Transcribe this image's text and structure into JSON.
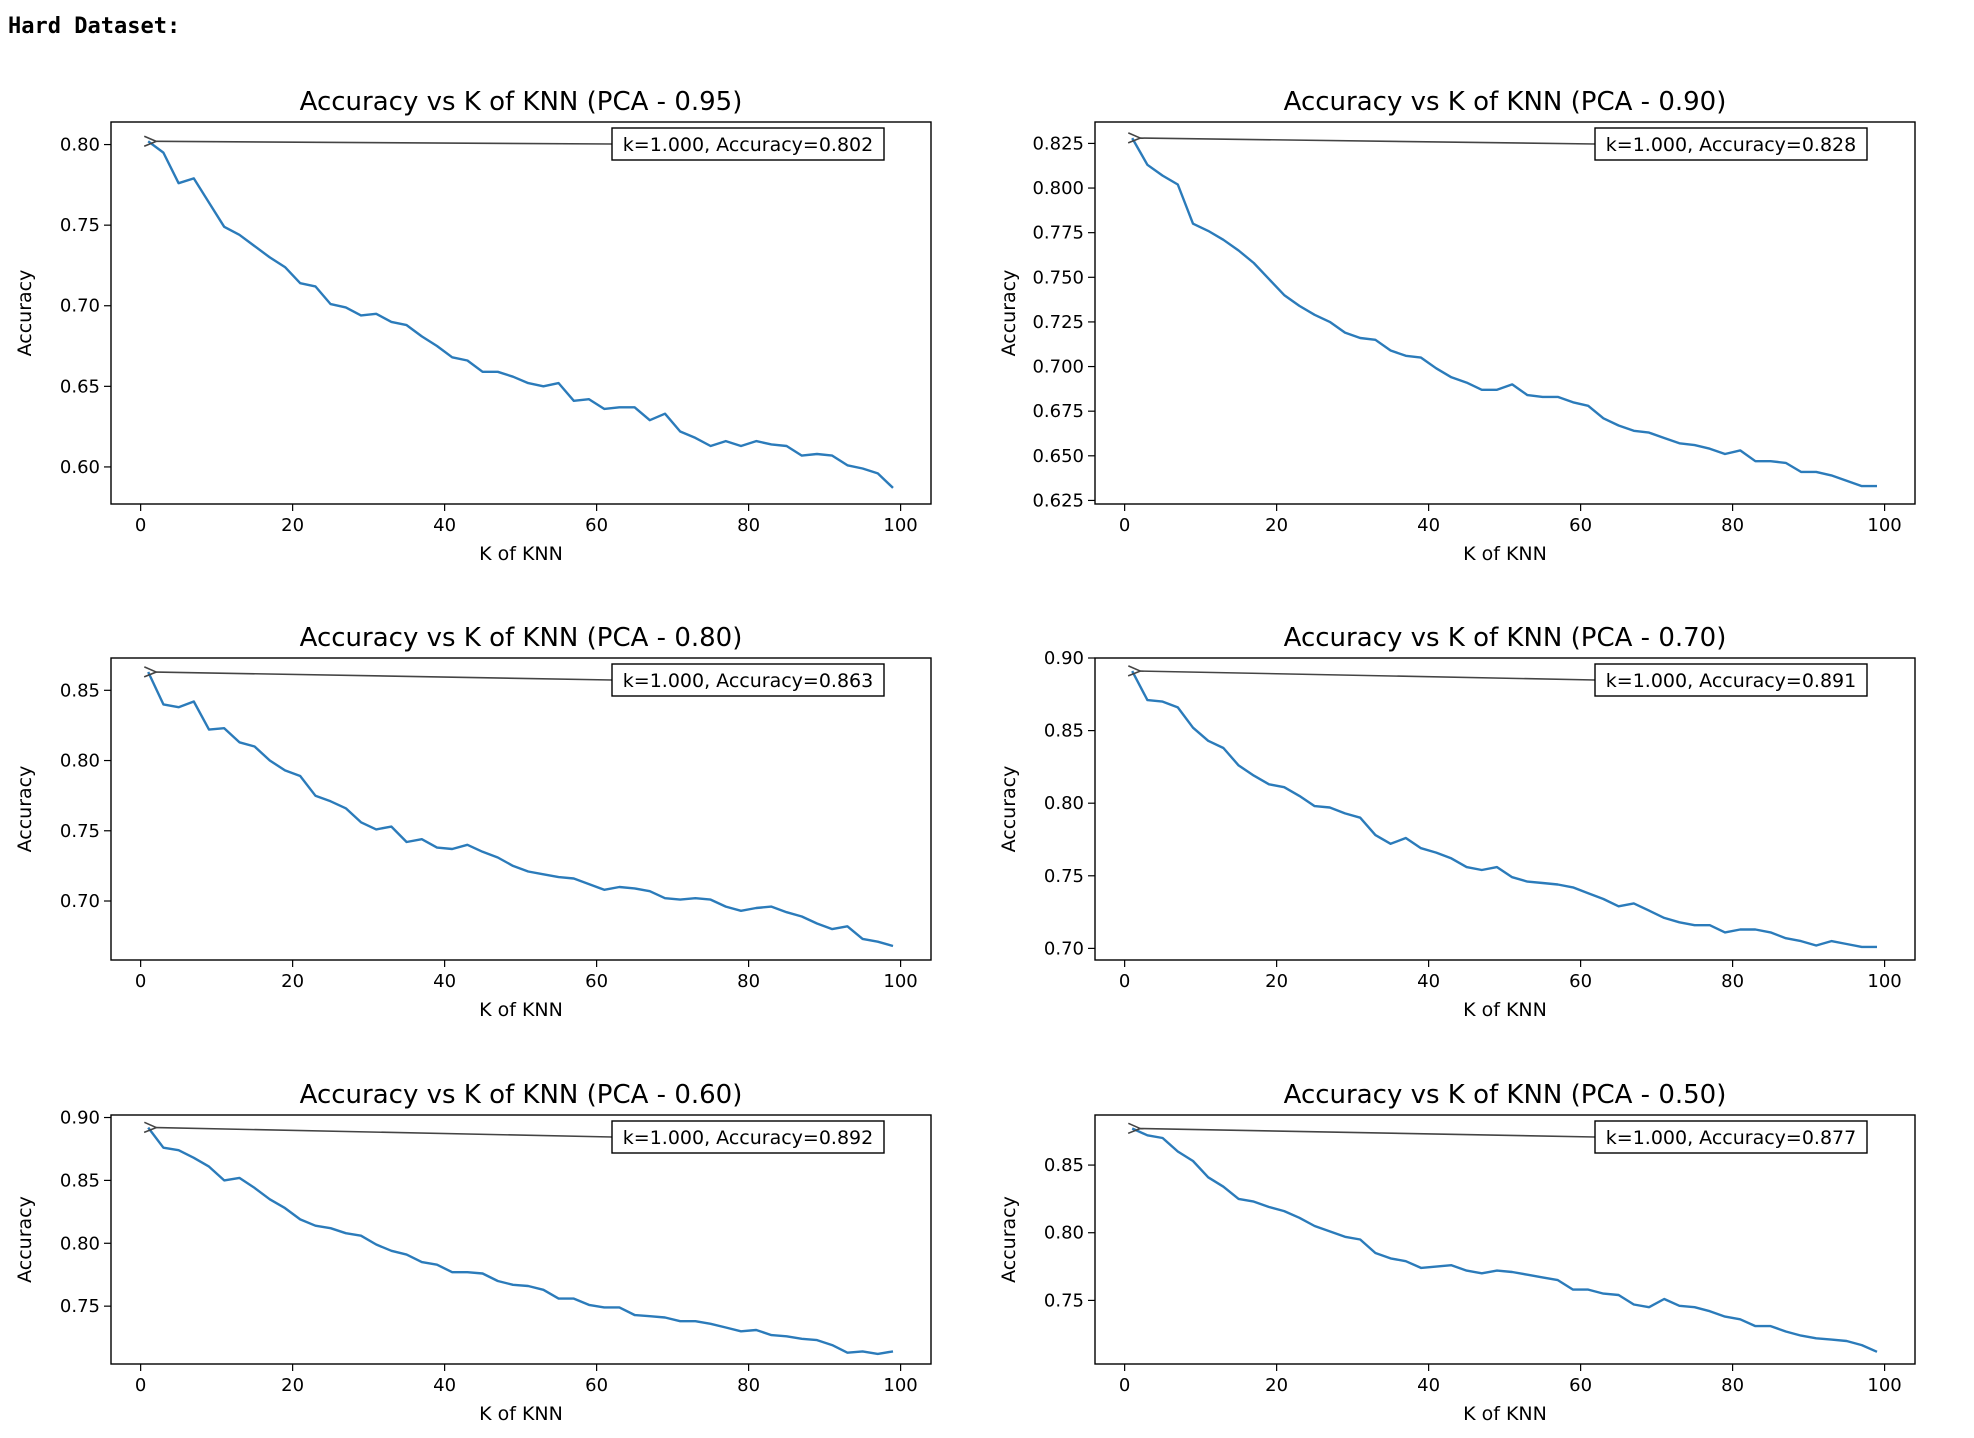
{
  "header": {
    "title": "Hard Dataset:"
  },
  "style": {
    "line_color": "#2b7bba",
    "axis_color": "#000000",
    "arrow_color": "#444444"
  },
  "chart_data": [
    {
      "type": "line",
      "title": "Accuracy vs K of KNN (PCA - 0.95)",
      "xlabel": "K of KNN",
      "ylabel": "Accuracy",
      "xlim": [
        -3.9,
        104
      ],
      "ylim": [
        0.577,
        0.814
      ],
      "xticks": [
        0,
        20,
        40,
        60,
        80,
        100
      ],
      "yticks": [
        0.6,
        0.65,
        0.7,
        0.75,
        0.8
      ],
      "ytick_labels": [
        "0.60",
        "0.65",
        "0.70",
        "0.75",
        "0.80"
      ],
      "annotation": {
        "text": "k=1.000, Accuracy=0.802",
        "x": 1,
        "y": 0.802
      },
      "series": [
        {
          "x": [
            1,
            3,
            5,
            7,
            9,
            11,
            13,
            15,
            17,
            19,
            21,
            23,
            25,
            27,
            29,
            31,
            33,
            35,
            37,
            39,
            41,
            43,
            45,
            47,
            49,
            51,
            53,
            55,
            57,
            59,
            61,
            63,
            65,
            67,
            69,
            71,
            73,
            75,
            77,
            79,
            81,
            83,
            85,
            87,
            89,
            91,
            93,
            95,
            97,
            99
          ],
          "values": [
            0.802,
            0.795,
            0.776,
            0.779,
            0.764,
            0.749,
            0.744,
            0.737,
            0.73,
            0.724,
            0.714,
            0.712,
            0.701,
            0.699,
            0.694,
            0.695,
            0.69,
            0.688,
            0.681,
            0.675,
            0.668,
            0.666,
            0.659,
            0.659,
            0.656,
            0.652,
            0.65,
            0.652,
            0.641,
            0.642,
            0.636,
            0.637,
            0.637,
            0.629,
            0.633,
            0.622,
            0.618,
            0.613,
            0.616,
            0.613,
            0.616,
            0.614,
            0.613,
            0.607,
            0.608,
            0.607,
            0.601,
            0.599,
            0.596,
            0.587
          ]
        }
      ]
    },
    {
      "type": "line",
      "title": "Accuracy vs K of KNN (PCA - 0.90)",
      "xlabel": "K of KNN",
      "ylabel": "Accuracy",
      "xlim": [
        -3.9,
        104
      ],
      "ylim": [
        0.623,
        0.837
      ],
      "xticks": [
        0,
        20,
        40,
        60,
        80,
        100
      ],
      "yticks": [
        0.625,
        0.65,
        0.675,
        0.7,
        0.725,
        0.75,
        0.775,
        0.8,
        0.825
      ],
      "ytick_labels": [
        "0.625",
        "0.650",
        "0.675",
        "0.700",
        "0.725",
        "0.750",
        "0.775",
        "0.800",
        "0.825"
      ],
      "annotation": {
        "text": "k=1.000, Accuracy=0.828",
        "x": 1,
        "y": 0.828
      },
      "series": [
        {
          "x": [
            1,
            3,
            5,
            7,
            9,
            11,
            13,
            15,
            17,
            19,
            21,
            23,
            25,
            27,
            29,
            31,
            33,
            35,
            37,
            39,
            41,
            43,
            45,
            47,
            49,
            51,
            53,
            55,
            57,
            59,
            61,
            63,
            65,
            67,
            69,
            71,
            73,
            75,
            77,
            79,
            81,
            83,
            85,
            87,
            89,
            91,
            93,
            95,
            97,
            99
          ],
          "values": [
            0.828,
            0.813,
            0.807,
            0.802,
            0.78,
            0.776,
            0.771,
            0.765,
            0.758,
            0.749,
            0.74,
            0.734,
            0.729,
            0.725,
            0.719,
            0.716,
            0.715,
            0.709,
            0.706,
            0.705,
            0.699,
            0.694,
            0.691,
            0.687,
            0.687,
            0.69,
            0.684,
            0.683,
            0.683,
            0.68,
            0.678,
            0.671,
            0.667,
            0.664,
            0.663,
            0.66,
            0.657,
            0.656,
            0.654,
            0.651,
            0.653,
            0.647,
            0.647,
            0.646,
            0.641,
            0.641,
            0.639,
            0.636,
            0.633,
            0.633
          ]
        }
      ]
    },
    {
      "type": "line",
      "title": "Accuracy vs K of KNN (PCA - 0.80)",
      "xlabel": "K of KNN",
      "ylabel": "Accuracy",
      "xlim": [
        -3.9,
        104
      ],
      "ylim": [
        0.658,
        0.873
      ],
      "xticks": [
        0,
        20,
        40,
        60,
        80,
        100
      ],
      "yticks": [
        0.7,
        0.75,
        0.8,
        0.85
      ],
      "ytick_labels": [
        "0.70",
        "0.75",
        "0.80",
        "0.85"
      ],
      "annotation": {
        "text": "k=1.000, Accuracy=0.863",
        "x": 1,
        "y": 0.863
      },
      "series": [
        {
          "x": [
            1,
            3,
            5,
            7,
            9,
            11,
            13,
            15,
            17,
            19,
            21,
            23,
            25,
            27,
            29,
            31,
            33,
            35,
            37,
            39,
            41,
            43,
            45,
            47,
            49,
            51,
            53,
            55,
            57,
            59,
            61,
            63,
            65,
            67,
            69,
            71,
            73,
            75,
            77,
            79,
            81,
            83,
            85,
            87,
            89,
            91,
            93,
            95,
            97,
            99
          ],
          "values": [
            0.863,
            0.84,
            0.838,
            0.842,
            0.822,
            0.823,
            0.813,
            0.81,
            0.8,
            0.793,
            0.789,
            0.775,
            0.771,
            0.766,
            0.756,
            0.751,
            0.753,
            0.742,
            0.744,
            0.738,
            0.737,
            0.74,
            0.735,
            0.731,
            0.725,
            0.721,
            0.719,
            0.717,
            0.716,
            0.712,
            0.708,
            0.71,
            0.709,
            0.707,
            0.702,
            0.701,
            0.702,
            0.701,
            0.696,
            0.693,
            0.695,
            0.696,
            0.692,
            0.689,
            0.684,
            0.68,
            0.682,
            0.673,
            0.671,
            0.668
          ]
        }
      ]
    },
    {
      "type": "line",
      "title": "Accuracy vs K of KNN (PCA - 0.70)",
      "xlabel": "K of KNN",
      "ylabel": "Accuracy",
      "xlim": [
        -3.9,
        104
      ],
      "ylim": [
        0.692,
        0.9
      ],
      "xticks": [
        0,
        20,
        40,
        60,
        80,
        100
      ],
      "yticks": [
        0.7,
        0.75,
        0.8,
        0.85,
        0.9
      ],
      "ytick_labels": [
        "0.70",
        "0.75",
        "0.80",
        "0.85",
        "0.90"
      ],
      "annotation": {
        "text": "k=1.000, Accuracy=0.891",
        "x": 1,
        "y": 0.891
      },
      "series": [
        {
          "x": [
            1,
            3,
            5,
            7,
            9,
            11,
            13,
            15,
            17,
            19,
            21,
            23,
            25,
            27,
            29,
            31,
            33,
            35,
            37,
            39,
            41,
            43,
            45,
            47,
            49,
            51,
            53,
            55,
            57,
            59,
            61,
            63,
            65,
            67,
            69,
            71,
            73,
            75,
            77,
            79,
            81,
            83,
            85,
            87,
            89,
            91,
            93,
            95,
            97,
            99
          ],
          "values": [
            0.891,
            0.871,
            0.87,
            0.866,
            0.852,
            0.843,
            0.838,
            0.826,
            0.819,
            0.813,
            0.811,
            0.805,
            0.798,
            0.797,
            0.793,
            0.79,
            0.778,
            0.772,
            0.776,
            0.769,
            0.766,
            0.762,
            0.756,
            0.754,
            0.756,
            0.749,
            0.746,
            0.745,
            0.744,
            0.742,
            0.738,
            0.734,
            0.729,
            0.731,
            0.726,
            0.721,
            0.718,
            0.716,
            0.716,
            0.711,
            0.713,
            0.713,
            0.711,
            0.707,
            0.705,
            0.702,
            0.705,
            0.703,
            0.701,
            0.701
          ]
        }
      ]
    },
    {
      "type": "line",
      "title": "Accuracy vs K of KNN (PCA - 0.60)",
      "xlabel": "K of KNN",
      "ylabel": "Accuracy",
      "xlim": [
        -3.9,
        104
      ],
      "ylim": [
        0.704,
        0.902
      ],
      "xticks": [
        0,
        20,
        40,
        60,
        80,
        100
      ],
      "yticks": [
        0.75,
        0.8,
        0.85,
        0.9
      ],
      "ytick_labels": [
        "0.75",
        "0.80",
        "0.85",
        "0.90"
      ],
      "annotation": {
        "text": "k=1.000, Accuracy=0.892",
        "x": 1,
        "y": 0.892
      },
      "series": [
        {
          "x": [
            1,
            3,
            5,
            7,
            9,
            11,
            13,
            15,
            17,
            19,
            21,
            23,
            25,
            27,
            29,
            31,
            33,
            35,
            37,
            39,
            41,
            43,
            45,
            47,
            49,
            51,
            53,
            55,
            57,
            59,
            61,
            63,
            65,
            67,
            69,
            71,
            73,
            75,
            77,
            79,
            81,
            83,
            85,
            87,
            89,
            91,
            93,
            95,
            97,
            99
          ],
          "values": [
            0.892,
            0.876,
            0.874,
            0.868,
            0.861,
            0.85,
            0.852,
            0.844,
            0.835,
            0.828,
            0.819,
            0.814,
            0.812,
            0.808,
            0.806,
            0.799,
            0.794,
            0.791,
            0.785,
            0.783,
            0.777,
            0.777,
            0.776,
            0.77,
            0.767,
            0.766,
            0.763,
            0.756,
            0.756,
            0.751,
            0.749,
            0.749,
            0.743,
            0.742,
            0.741,
            0.738,
            0.738,
            0.736,
            0.733,
            0.73,
            0.731,
            0.727,
            0.726,
            0.724,
            0.723,
            0.719,
            0.713,
            0.714,
            0.712,
            0.714
          ]
        }
      ]
    },
    {
      "type": "line",
      "title": "Accuracy vs K of KNN (PCA - 0.50)",
      "xlabel": "K of KNN",
      "ylabel": "Accuracy",
      "xlim": [
        -3.9,
        104
      ],
      "ylim": [
        0.703,
        0.887
      ],
      "xticks": [
        0,
        20,
        40,
        60,
        80,
        100
      ],
      "yticks": [
        0.75,
        0.8,
        0.85
      ],
      "ytick_labels": [
        "0.75",
        "0.80",
        "0.85"
      ],
      "annotation": {
        "text": "k=1.000, Accuracy=0.877",
        "x": 1,
        "y": 0.877
      },
      "series": [
        {
          "x": [
            1,
            3,
            5,
            7,
            9,
            11,
            13,
            15,
            17,
            19,
            21,
            23,
            25,
            27,
            29,
            31,
            33,
            35,
            37,
            39,
            41,
            43,
            45,
            47,
            49,
            51,
            53,
            55,
            57,
            59,
            61,
            63,
            65,
            67,
            69,
            71,
            73,
            75,
            77,
            79,
            81,
            83,
            85,
            87,
            89,
            91,
            93,
            95,
            97,
            99
          ],
          "values": [
            0.877,
            0.872,
            0.87,
            0.86,
            0.853,
            0.841,
            0.834,
            0.825,
            0.823,
            0.819,
            0.816,
            0.811,
            0.805,
            0.801,
            0.797,
            0.795,
            0.785,
            0.781,
            0.779,
            0.774,
            0.775,
            0.776,
            0.772,
            0.77,
            0.772,
            0.771,
            0.769,
            0.767,
            0.765,
            0.758,
            0.758,
            0.755,
            0.754,
            0.747,
            0.745,
            0.751,
            0.746,
            0.745,
            0.742,
            0.738,
            0.736,
            0.731,
            0.731,
            0.727,
            0.724,
            0.722,
            0.721,
            0.72,
            0.717,
            0.712
          ]
        }
      ]
    }
  ]
}
